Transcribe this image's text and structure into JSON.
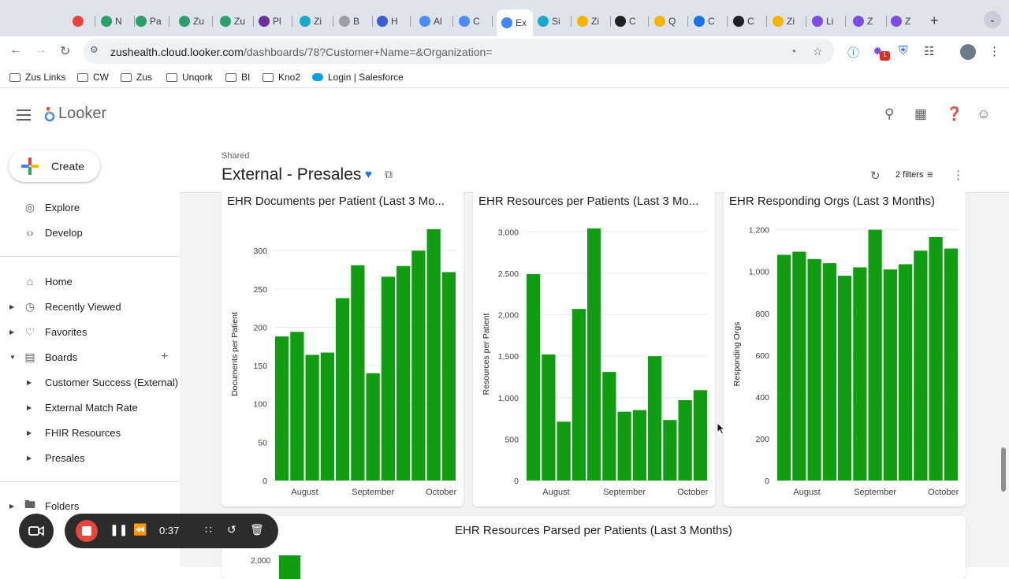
{
  "browser": {
    "tabs": [
      {
        "label": "",
        "icon": "record-icon",
        "color": "#e8453c"
      },
      {
        "label": "N",
        "icon": "site-icon",
        "color": "#2e9e6a"
      },
      {
        "label": "Pa",
        "icon": "site-icon",
        "color": "#2e9e6a"
      },
      {
        "label": "Zu",
        "icon": "zus-icon",
        "color": "#2e9e6a"
      },
      {
        "label": "Zu",
        "icon": "site-icon",
        "color": "#2e9e6a"
      },
      {
        "label": "Pl",
        "icon": "site-icon",
        "color": "#6b2fa0"
      },
      {
        "label": "Zi",
        "icon": "site-icon",
        "color": "#1aa9c9"
      },
      {
        "label": "B",
        "icon": "site-icon",
        "color": "#9aa0a6"
      },
      {
        "label": "H",
        "icon": "site-icon",
        "color": "#3b5bdb"
      },
      {
        "label": "Al",
        "icon": "site-icon",
        "color": "#4c8bf5"
      },
      {
        "label": "C",
        "icon": "site-icon",
        "color": "#4c8bf5"
      },
      {
        "label": "Ex",
        "icon": "looker-icon",
        "color": "#4285f4",
        "active": true
      },
      {
        "label": "Si",
        "icon": "site-icon",
        "color": "#1aa9c9"
      },
      {
        "label": "Zi",
        "icon": "site-icon",
        "color": "#f4b400"
      },
      {
        "label": "C",
        "icon": "play-icon",
        "color": "#202124"
      },
      {
        "label": "Q",
        "icon": "site-icon",
        "color": "#f4b400"
      },
      {
        "label": "C",
        "icon": "site-icon",
        "color": "#1a73e8"
      },
      {
        "label": "C",
        "icon": "play-icon",
        "color": "#202124"
      },
      {
        "label": "Zi",
        "icon": "site-icon",
        "color": "#f4b400"
      },
      {
        "label": "Li",
        "icon": "site-icon",
        "color": "#7b4ee0"
      },
      {
        "label": "Z",
        "icon": "site-icon",
        "color": "#7b4ee0"
      },
      {
        "label": "Z",
        "icon": "site-icon",
        "color": "#7b4ee0"
      }
    ],
    "url_host": "zushealth.cloud.looker.com",
    "url_path": "/dashboards/78?Customer+Name=&Organization=",
    "extension_badge": "1",
    "bookmarks": [
      {
        "label": "Zus Links",
        "icon": "folder-icon"
      },
      {
        "label": "CW",
        "icon": "folder-icon"
      },
      {
        "label": "Zus",
        "icon": "folder-icon"
      },
      {
        "label": "Unqork",
        "icon": "folder-icon"
      },
      {
        "label": "BI",
        "icon": "folder-icon"
      },
      {
        "label": "Kno2",
        "icon": "folder-icon"
      },
      {
        "label": "Login | Salesforce",
        "icon": "salesforce-icon"
      }
    ]
  },
  "app": {
    "brand": "Looker"
  },
  "sidebar": {
    "create_label": "Create",
    "top_items": [
      {
        "label": "Explore",
        "icon": "compass-icon"
      },
      {
        "label": "Develop",
        "icon": "code-icon"
      }
    ],
    "items": [
      {
        "label": "Home",
        "icon": "home-icon"
      },
      {
        "label": "Recently Viewed",
        "icon": "clock-icon"
      },
      {
        "label": "Favorites",
        "icon": "heart-icon"
      },
      {
        "label": "Boards",
        "icon": "board-icon"
      }
    ],
    "boards": [
      {
        "label": "Customer Success (External)"
      },
      {
        "label": "External Match Rate"
      },
      {
        "label": "FHIR Resources"
      },
      {
        "label": "Presales"
      }
    ],
    "folders_label": "Folders"
  },
  "dashboard": {
    "breadcrumb": "Shared",
    "title": "External - Presales",
    "filters_label": "2 filters"
  },
  "recorder": {
    "time": "0:37"
  },
  "chart_data": [
    {
      "type": "bar",
      "title": "EHR Documents per Patient (Last 3 Mo...",
      "ylabel": "Documents per Patient",
      "xlabel": "",
      "ylim": [
        0,
        330
      ],
      "yticks": [
        0,
        50,
        100,
        150,
        200,
        250,
        300
      ],
      "ytick_labels": [
        "0",
        "50",
        "100",
        "150",
        "200",
        "250",
        "300"
      ],
      "x_tick_labels": [
        "August",
        "September",
        "October"
      ],
      "x_tick_index": [
        1.5,
        6,
        10.5
      ],
      "color": "#119d11",
      "values": [
        188,
        194,
        164,
        167,
        238,
        281,
        140,
        266,
        280,
        300,
        328,
        272
      ]
    },
    {
      "type": "bar",
      "title": "EHR Resources per Patients (Last 3 Mo...",
      "ylabel": "Resources per Patient",
      "xlabel": "",
      "ylim": [
        0,
        3050
      ],
      "yticks": [
        0,
        500,
        1000,
        1500,
        2000,
        2500,
        3000
      ],
      "ytick_labels": [
        "0",
        "500",
        "1,000",
        "1,500",
        "2,000",
        "2,500",
        "3,000"
      ],
      "x_tick_labels": [
        "August",
        "September",
        "October"
      ],
      "x_tick_index": [
        1.5,
        6,
        10.5
      ],
      "color": "#119d11",
      "values": [
        2490,
        1520,
        710,
        2070,
        3040,
        1310,
        830,
        850,
        1500,
        730,
        970,
        1090
      ]
    },
    {
      "type": "bar",
      "title": "EHR Responding Orgs (Last 3 Months)",
      "ylabel": "Responding Orgs",
      "xlabel": "",
      "ylim": [
        0,
        1210
      ],
      "yticks": [
        0,
        200,
        400,
        600,
        800,
        1000,
        1200
      ],
      "ytick_labels": [
        "0",
        "200",
        "400",
        "600",
        "800",
        "1,000",
        "1,200"
      ],
      "x_tick_labels": [
        "August",
        "September",
        "October"
      ],
      "x_tick_index": [
        1.5,
        6,
        10.5
      ],
      "color": "#119d11",
      "values": [
        1080,
        1095,
        1060,
        1040,
        980,
        1020,
        1200,
        1010,
        1035,
        1100,
        1165,
        1110
      ]
    },
    {
      "type": "bar",
      "title": "EHR Resources Parsed per Patients (Last 3 Months)",
      "ylabel": "",
      "xlabel": "",
      "ytick_labels": [
        "2,000"
      ],
      "color": "#119d11",
      "values": []
    }
  ]
}
